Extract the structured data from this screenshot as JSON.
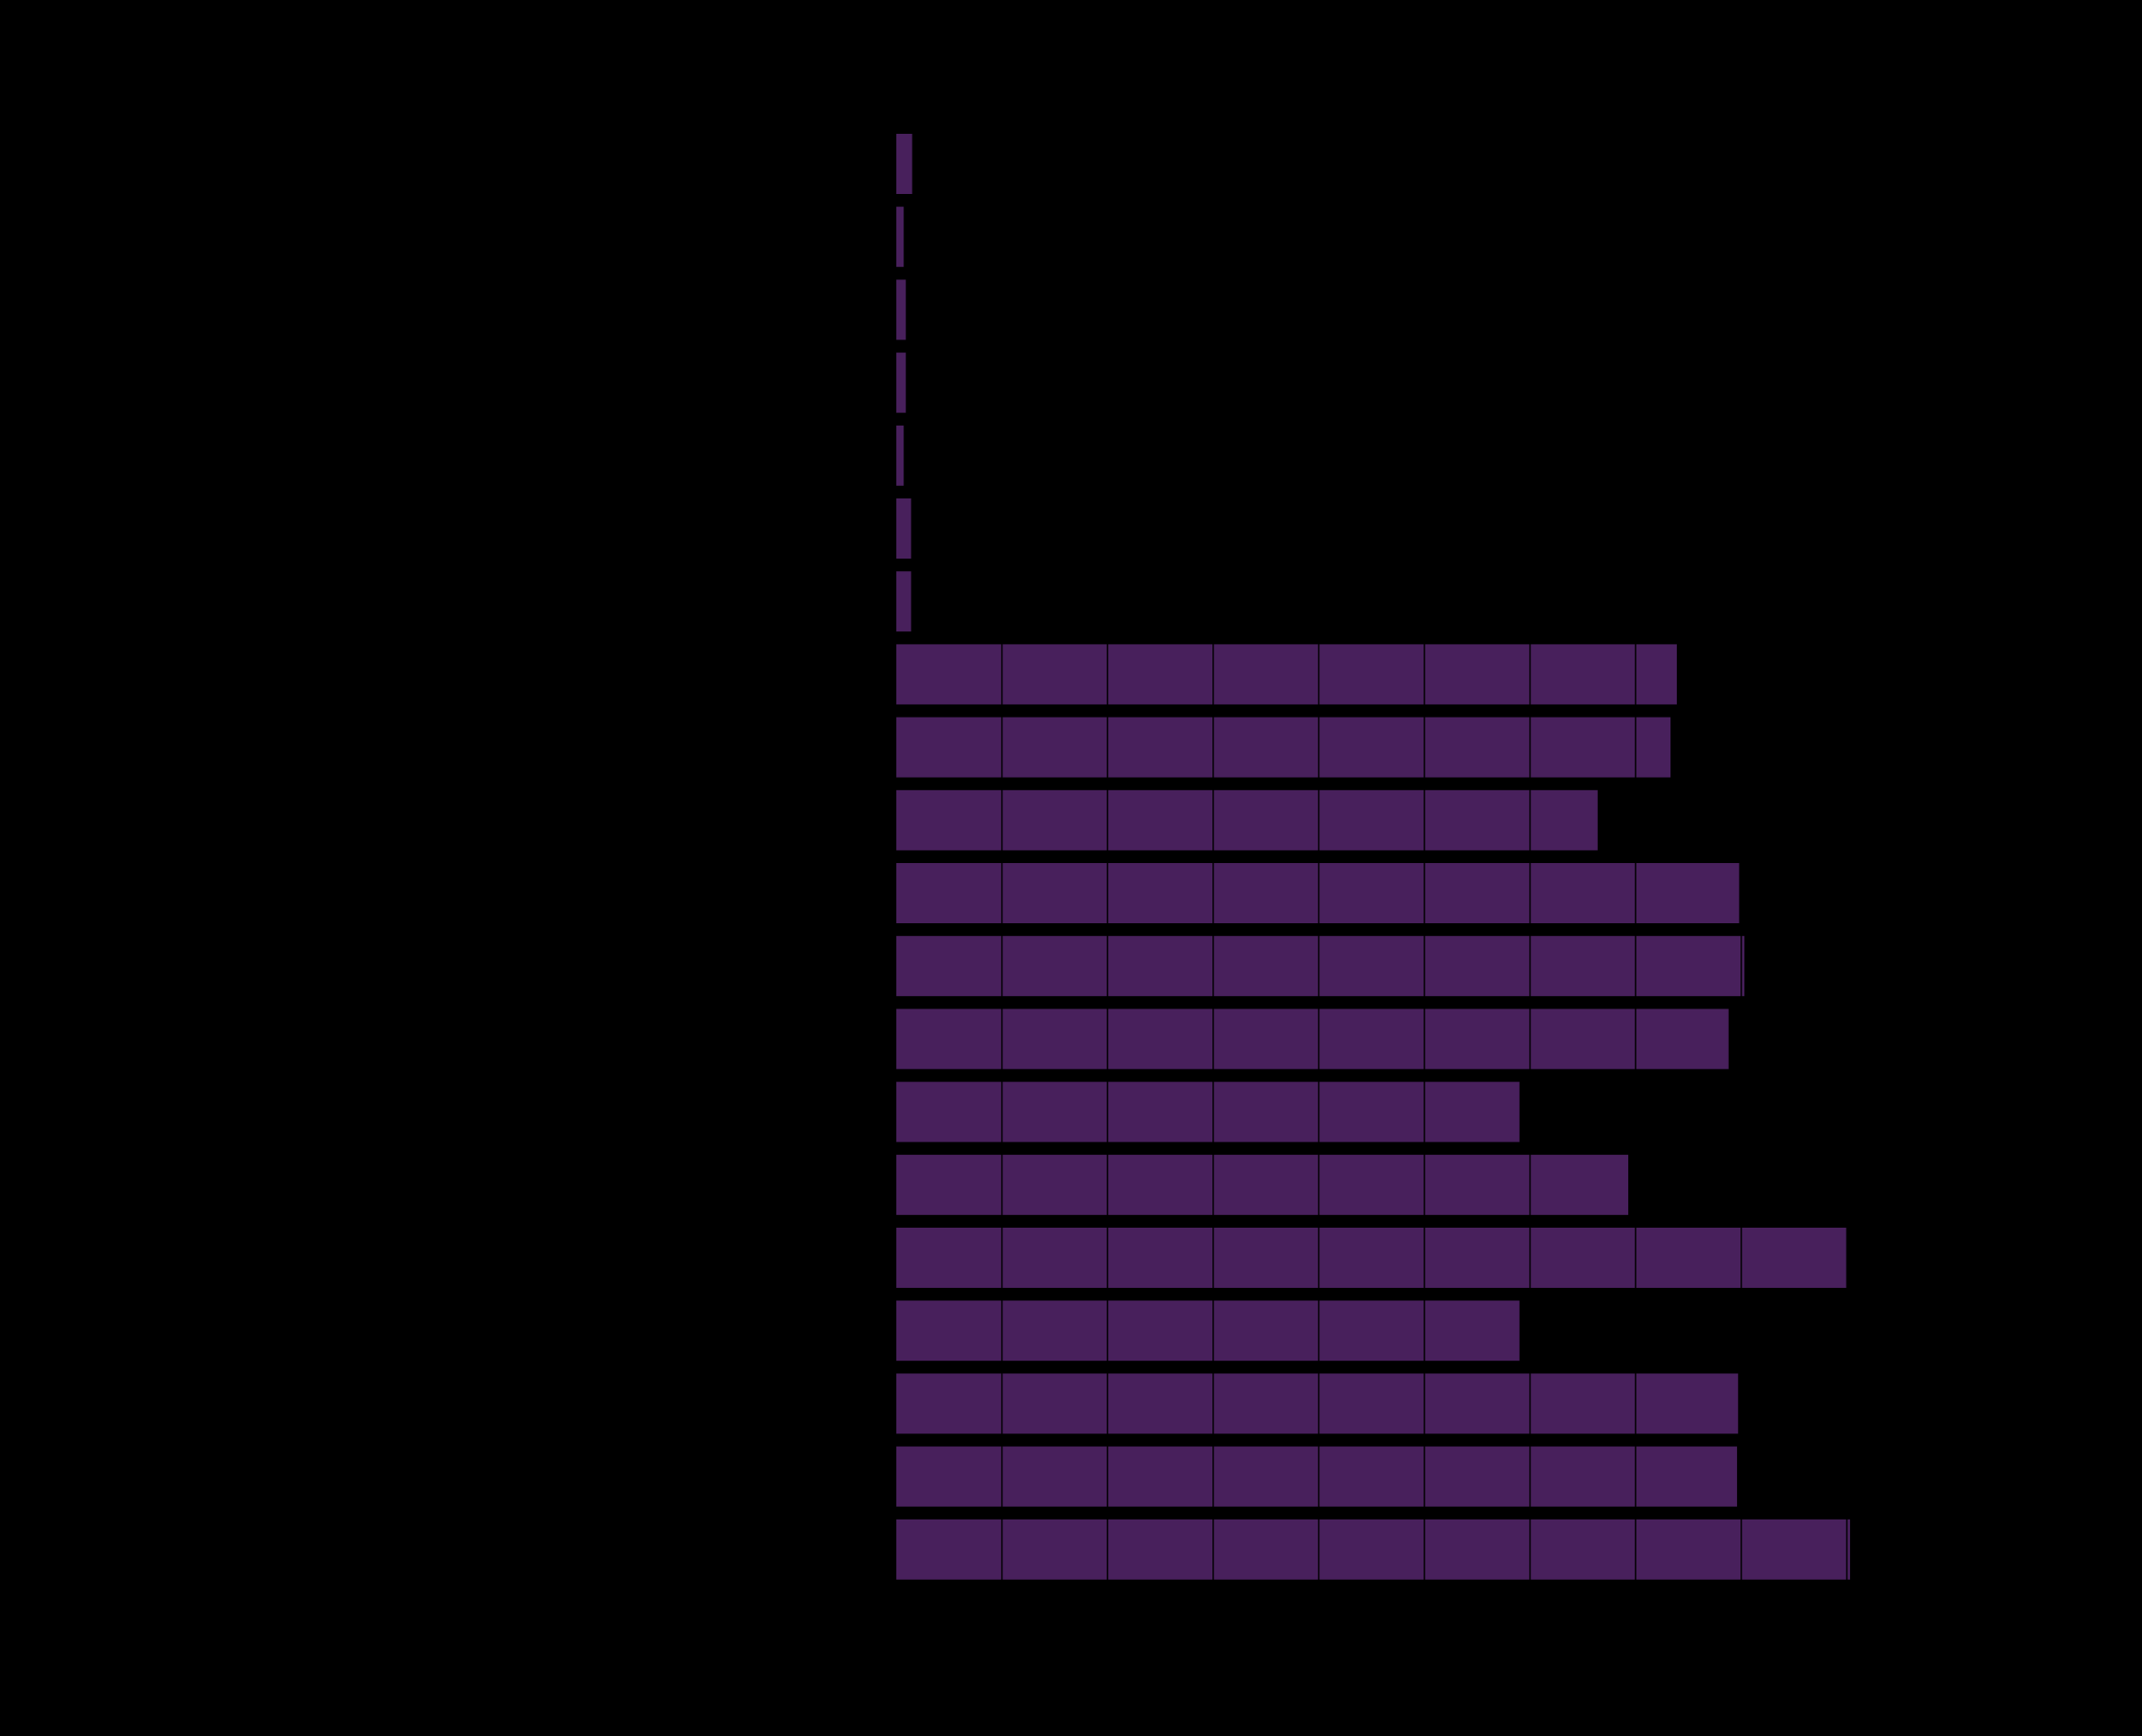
{
  "chart_data": {
    "type": "bar",
    "orientation": "horizontal",
    "title": "",
    "xlabel": "",
    "ylabel": "",
    "xlim": [
      0,
      10
    ],
    "grid": true,
    "bar_color": "#48205c",
    "background_color": "#000000",
    "gridline_color": "#000000",
    "series": [
      {
        "name": "",
        "values": [
          0.15,
          0.07,
          0.09,
          0.09,
          0.07,
          0.14,
          0.14,
          7.39,
          7.33,
          6.64,
          7.98,
          8.03,
          7.88,
          5.9,
          6.93,
          9.0,
          5.9,
          7.97,
          7.96,
          9.03
        ]
      }
    ]
  }
}
